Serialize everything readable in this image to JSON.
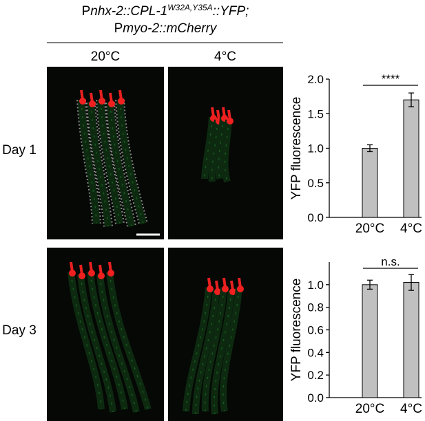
{
  "figure": {
    "title_line1": [
      "P",
      "nhx-2::CPL-1",
      "W32A,Y35A",
      "::YFP;"
    ],
    "title_line2": [
      "P",
      "myo-2::mCherry"
    ],
    "columns": [
      "20°C",
      "4°C"
    ],
    "rows": [
      "Day 1",
      "Day 3"
    ]
  },
  "chart_data": [
    {
      "type": "bar",
      "ylabel": "YFP fluorescence",
      "categories": [
        "20°C",
        "4°C"
      ],
      "values": [
        1.0,
        1.7
      ],
      "errors": [
        0.05,
        0.1
      ],
      "color": "#c0c0c0",
      "ylim": [
        0,
        2.0
      ],
      "yticks": [
        {
          "value": 0,
          "label": "0.0"
        },
        0.5,
        {
          "value": 1,
          "label": "1.0"
        },
        1.5,
        {
          "value": 2,
          "label": "2.0"
        }
      ],
      "annotation": "****"
    },
    {
      "type": "bar",
      "ylabel": "YFP fluorescence",
      "categories": [
        "20°C",
        "4°C"
      ],
      "values": [
        1.0,
        1.02
      ],
      "errors": [
        0.04,
        0.07
      ],
      "color": "#c0c0c0",
      "ylim": [
        0,
        1.2
      ],
      "yticks": [
        {
          "value": 0,
          "label": "0.0"
        },
        0.2,
        0.4,
        0.6,
        0.8,
        {
          "value": 1,
          "label": "1.0"
        }
      ],
      "annotation": "n.s."
    }
  ]
}
